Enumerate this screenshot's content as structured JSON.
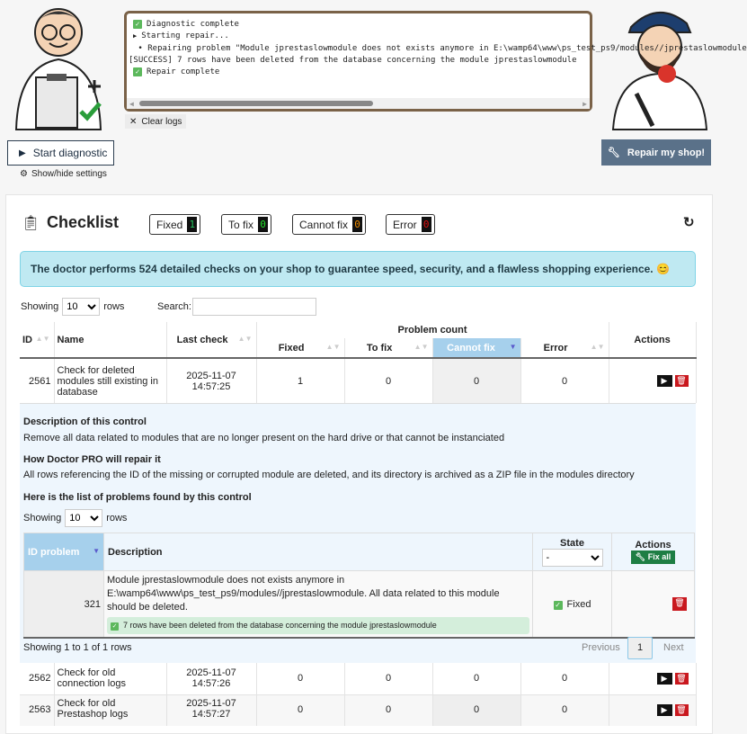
{
  "logs": {
    "lines": [
      {
        "icon": "check",
        "text": "Diagnostic complete"
      },
      {
        "icon": "triangle",
        "text": "Starting repair..."
      },
      {
        "icon": "bullet",
        "text": " Repairing problem \"Module jprestaslowmodule does not exists anymore in E:\\wamp64\\www\\ps_test_ps9/modules//jprestaslowmodule"
      },
      {
        "icon": "",
        "text": "[SUCCESS] 7 rows have been deleted from the database concerning the module jprestaslowmodule"
      },
      {
        "icon": "check",
        "text": "Repair complete"
      }
    ],
    "clear_label": "Clear logs"
  },
  "buttons": {
    "start": "Start diagnostic",
    "settings": "Show/hide settings",
    "repair": "Repair my shop!"
  },
  "checklist": {
    "title": "Checklist",
    "badges": [
      {
        "label": "Fixed",
        "value": "1",
        "color": "#22c55e"
      },
      {
        "label": "To fix",
        "value": "0",
        "color": "#22e02a"
      },
      {
        "label": "Cannot fix",
        "value": "0",
        "color": "#f08c00"
      },
      {
        "label": "Error",
        "value": "0",
        "color": "#e01010"
      }
    ],
    "info": "The doctor performs 524 detailed checks on your shop to guarantee speed, security, and a flawless shopping experience. 😊"
  },
  "table": {
    "showing": "Showing",
    "page_size": "10",
    "rows_label": "rows",
    "search_label": "Search:",
    "search_value": "",
    "headers": {
      "id": "ID",
      "name": "Name",
      "last_check": "Last check",
      "problem_count": "Problem count",
      "fixed": "Fixed",
      "to_fix": "To fix",
      "cannot_fix": "Cannot fix",
      "error": "Error",
      "actions": "Actions"
    },
    "rows": [
      {
        "id": "2561",
        "name": "Check for deleted modules still existing in database",
        "date": "2025-11-07",
        "time": "14:57:25",
        "fixed": "1",
        "to_fix": "0",
        "cannot_fix": "0",
        "error": "0"
      },
      {
        "id": "2562",
        "name": "Check for old connection logs",
        "date": "2025-11-07",
        "time": "14:57:26",
        "fixed": "0",
        "to_fix": "0",
        "cannot_fix": "0",
        "error": "0"
      },
      {
        "id": "2563",
        "name": "Check for old Prestashop logs",
        "date": "2025-11-07",
        "time": "14:57:27",
        "fixed": "0",
        "to_fix": "0",
        "cannot_fix": "0",
        "error": "0"
      }
    ]
  },
  "detail": {
    "desc_title": "Description of this control",
    "desc": "Remove all data related to modules that are no longer present on the hard drive or that cannot be instanciated",
    "repair_title": "How Doctor PRO will repair it",
    "repair": "All rows referencing the ID of the missing or corrupted module are deleted, and its directory is archived as a ZIP file in the modules directory",
    "list_title": "Here is the list of problems found by this control",
    "showing": "Showing",
    "page_size": "10",
    "rows_label": "rows",
    "headers": {
      "id": "ID problem",
      "description": "Description",
      "state": "State",
      "state_filter": "-",
      "actions": "Actions",
      "fix_all": "Fix all"
    },
    "problem": {
      "id": "321",
      "description": "Module jprestaslowmodule does not exists anymore in E:\\wamp64\\www\\ps_test_ps9/modules//jprestaslowmodule. All data related to this module should be deleted.",
      "result": "7 rows have been deleted from the database concerning the module jprestaslowmodule",
      "state": "Fixed"
    },
    "footer": "Showing 1 to 1 of 1 rows",
    "prev": "Previous",
    "page": "1",
    "next": "Next"
  }
}
